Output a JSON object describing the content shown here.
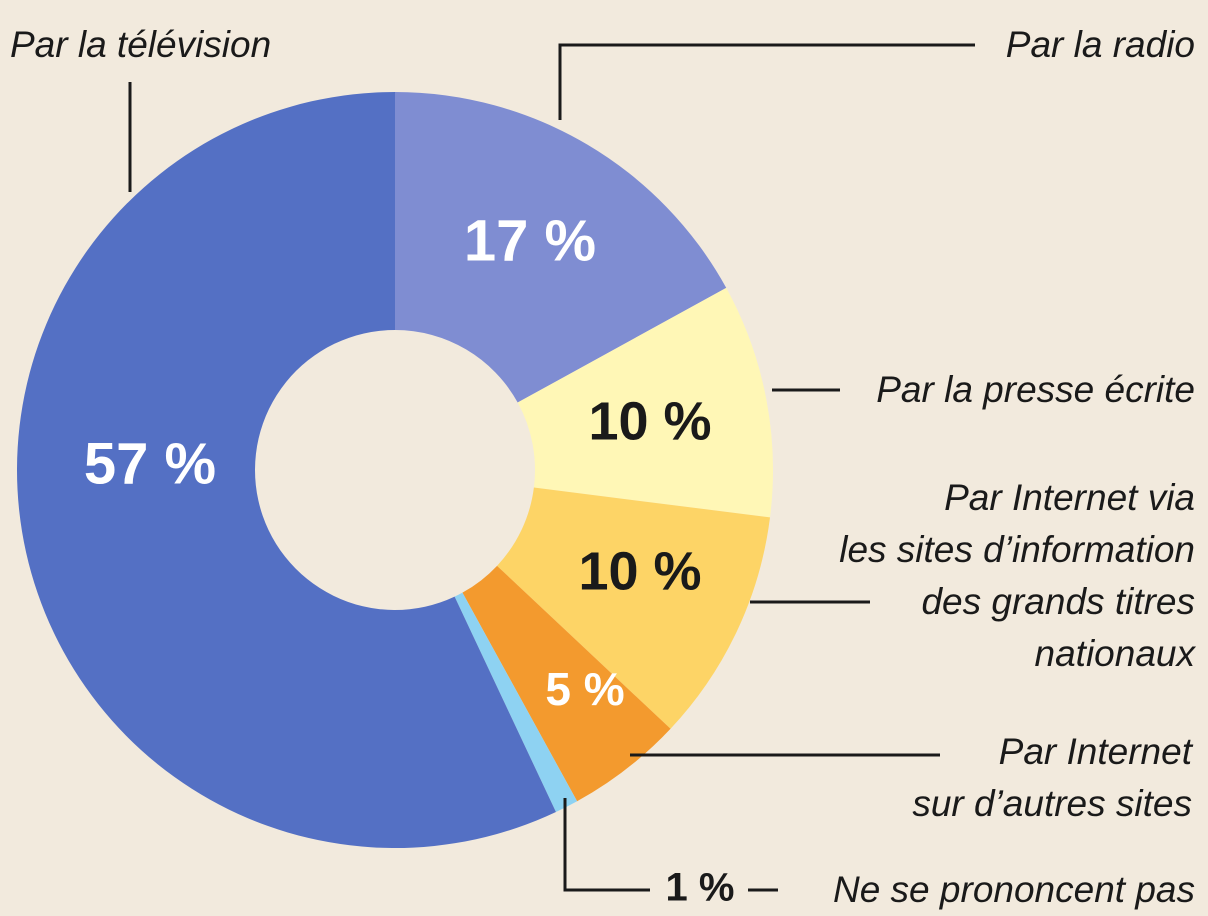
{
  "chart_data": {
    "type": "pie",
    "donut": true,
    "categories": [
      "Par la radio",
      "Par la presse écrite",
      "Par Internet via les sites d’information des grands titres nationaux",
      "Par Internet sur d’autres sites",
      "Ne se prononcent pas",
      "Par la télévision"
    ],
    "values": [
      17,
      10,
      10,
      5,
      1,
      57
    ],
    "value_labels": [
      "17 %",
      "10 %",
      "10 %",
      "5 %",
      "1 %",
      "57 %"
    ],
    "colors": [
      "#7f8dd2",
      "#fff7b6",
      "#fdd466",
      "#f39a2e",
      "#8ed2f2",
      "#5470c4"
    ]
  }
}
